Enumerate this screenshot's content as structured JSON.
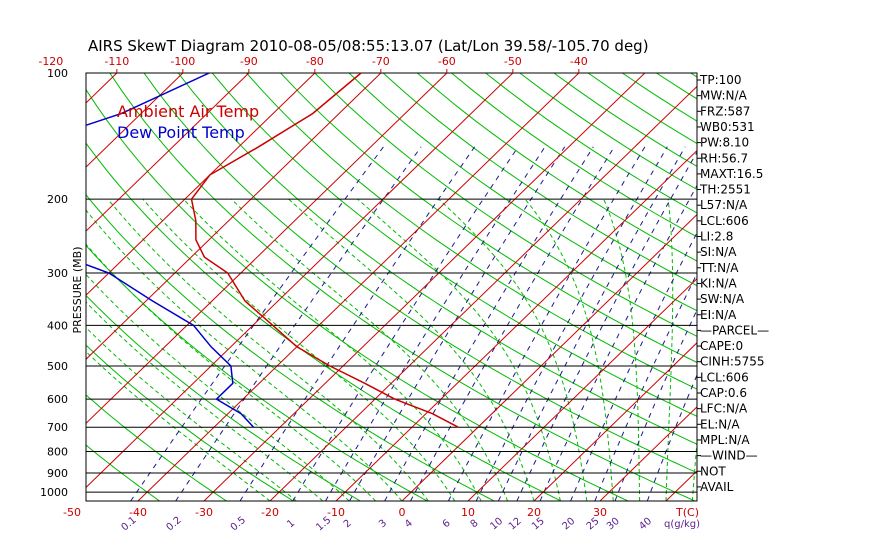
{
  "chart_data": {
    "type": "line",
    "title": "AIRS SkewT Diagram 2010-08-05/08:55:13.07 (Lat/Lon 39.58/-105.70 deg)",
    "ylabel": "PRESSURE (MB)",
    "pressure_ticks": [
      100,
      200,
      300,
      400,
      500,
      600,
      700,
      800,
      900,
      1000
    ],
    "bottom_temp_ticks": [
      -50,
      -40,
      -30,
      -20,
      -10,
      0,
      10,
      20,
      30
    ],
    "top_temp_ticks": [
      -120,
      -110,
      -100,
      -90,
      -80,
      -70,
      -60,
      -50,
      -40
    ],
    "temp_unit_label": "T(C)",
    "mixing_ratio_ticks": [
      "0.1",
      "0.2",
      "0.5",
      "1",
      "1.5",
      "2",
      "3",
      "4",
      "6",
      "8",
      "10",
      "12",
      "15",
      "20",
      "25",
      "30",
      "40"
    ],
    "mixing_ratio_label": "q(g/kg)",
    "series": [
      {
        "name": "Ambient Air Temp",
        "color": "#cc0000",
        "pressure": [
          100,
          125,
          150,
          175,
          200,
          225,
          250,
          275,
          300,
          350,
          400,
          450,
          500,
          550,
          600,
          650,
          700
        ],
        "values": [
          -73,
          -74,
          -77,
          -80,
          -79,
          -75,
          -72,
          -68,
          -62,
          -55,
          -47,
          -40,
          -32,
          -24,
          -17,
          -9,
          -3
        ]
      },
      {
        "name": "Dew Point Temp",
        "color": "#0000cc",
        "pressure": [
          100,
          125,
          150,
          175,
          200,
          225,
          250,
          275,
          300,
          350,
          400,
          450,
          500,
          550,
          600,
          650,
          700
        ],
        "values": [
          -96,
          -103,
          -113,
          -117,
          -115,
          -107,
          -98,
          -89,
          -80,
          -69,
          -59,
          -53,
          -47,
          -44,
          -44,
          -38,
          -34
        ]
      }
    ]
  },
  "indices": [
    "TP:100",
    "MW:N/A",
    "FRZ:587",
    "WB0:531",
    "PW:8.10",
    "RH:56.7",
    "MAXT:16.5",
    "TH:2551",
    "L57:N/A",
    "LCL:606",
    "LI:2.8",
    "SI:N/A",
    "TT:N/A",
    "KI:N/A",
    "SW:N/A",
    "EI:N/A",
    "—PARCEL—",
    "CAPE:0",
    "CINH:5755",
    "LCL:606",
    "CAP:0.6",
    "LFC:N/A",
    "EL:N/A",
    "MPL:N/A",
    "—WIND—",
    "NOT",
    "AVAIL"
  ],
  "colors": {
    "isotherm": "#cc0000",
    "dry_adiabat": "#00bb00",
    "moist_adiabat": "#00bb00",
    "mixing_ratio": "#1a1a8c",
    "isobar": "#000000"
  }
}
